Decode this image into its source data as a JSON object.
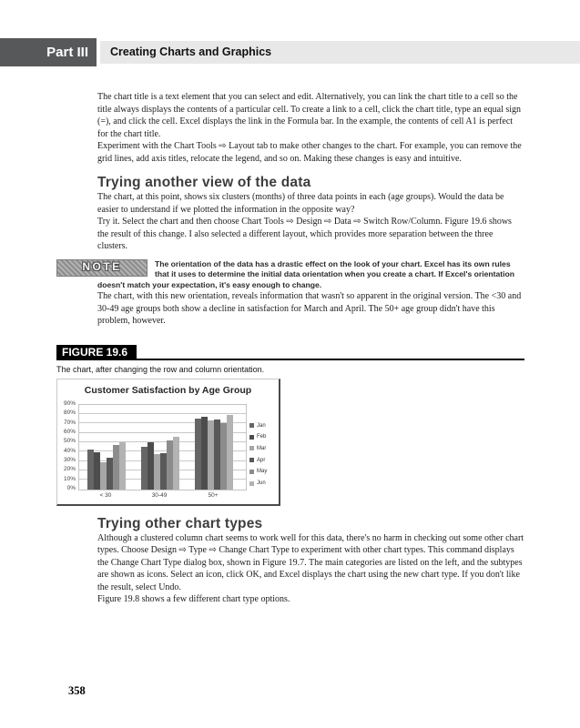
{
  "header": {
    "part_label": "Part III",
    "chapter_title": "Creating Charts and Graphics"
  },
  "sections": {
    "para1": "The chart title is a text element that you can select and edit. Alternatively, you can link the chart title to a cell so the title always displays the contents of a particular cell. To create a link to a cell, click the chart title, type an equal sign (=), and click the cell. Excel displays the link in the Formula bar. In the example, the contents of cell A1 is perfect for the chart title.",
    "para2": "Experiment with the Chart Tools ⇨ Layout tab to make other changes to the chart. For example, you can remove the grid lines, add axis titles, relocate the legend, and so on. Making these changes is easy and intuitive.",
    "heading1": "Trying another view of the data",
    "para3": "The chart, at this point, shows six clusters (months) of three data points in each (age groups). Would the data be easier to understand if we plotted the information in the opposite way?",
    "para4": "Try it. Select the chart and then choose Chart Tools ⇨ Design ⇨ Data ⇨ Switch Row/Column. Figure 19.6 shows the result of this change. I also selected a different layout, which provides more separation between the three clusters.",
    "note_label": "NOTE",
    "note_text": "The orientation of the data has a drastic effect on the look of your chart. Excel has its own rules that it uses to determine the initial data orientation when you create a chart. If Excel's orientation doesn't match your expectation, it's easy enough to change.",
    "para5": "The chart, with this new orientation, reveals information that wasn't so apparent in the original version. The <30 and 30-49 age groups both show a decline in satisfaction for March and April. The 50+ age group didn't have this problem, however.",
    "figure_label": "FIGURE 19.6",
    "figure_caption": "The chart, after changing the row and column orientation.",
    "heading2": "Trying other chart types",
    "para6": "Although a clustered column chart seems to work well for this data, there's no harm in checking out some other chart types. Choose Design ⇨ Type ⇨ Change Chart Type to experiment with other chart types. This command displays the Change Chart Type dialog box, shown in Figure 19.7. The main categories are listed on the left, and the subtypes are shown as icons. Select an icon, click OK, and Excel displays the chart using the new chart type. If you don't like the result, select Undo.",
    "para7": "Figure 19.8 shows a few different chart type options.",
    "page_number": "358"
  },
  "chart_data": {
    "type": "bar",
    "title": "Customer Satisfaction by Age Group",
    "categories": [
      "< 30",
      "30-49",
      "50+"
    ],
    "series": [
      {
        "name": "Jan",
        "color": "#666666",
        "values": [
          42,
          45,
          75
        ]
      },
      {
        "name": "Feb",
        "color": "#4d4d4d",
        "values": [
          39,
          50,
          77
        ]
      },
      {
        "name": "Mar",
        "color": "#a6a6a6",
        "values": [
          29,
          37,
          73
        ]
      },
      {
        "name": "Apr",
        "color": "#595959",
        "values": [
          33,
          38,
          74
        ]
      },
      {
        "name": "May",
        "color": "#8c8c8c",
        "values": [
          47,
          52,
          70
        ]
      },
      {
        "name": "Jun",
        "color": "#b3b3b3",
        "values": [
          50,
          56,
          79
        ]
      }
    ],
    "ylim": [
      0,
      90
    ],
    "ytick_step": 10,
    "ytick_format": "percent",
    "grid": true,
    "legend_position": "right"
  }
}
